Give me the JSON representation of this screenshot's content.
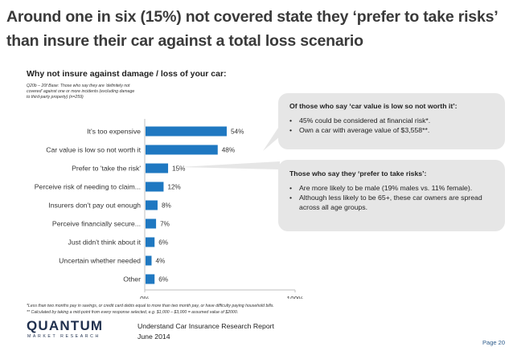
{
  "slide": {
    "title": "Around one in six (15%) not covered state they ‘prefer to take risks’ than insure their car against a total loss scenario",
    "subtitle": "Why not insure against damage / loss of your car:",
    "base_note": "Q20b – 20f Base: Those who say they are 'definitely not covered' against one or more incidents (excluding damage to third-party property) (n=259)"
  },
  "chart_data": {
    "type": "bar",
    "orientation": "horizontal",
    "categories": [
      "It's too expensive",
      "Car value is low so not worth it",
      "Prefer to 'take the risk'",
      "Perceive risk of needing to claim...",
      "Insurers don't pay out enough",
      "Perceive financially secure...",
      "Just didn't think about it",
      "Uncertain whether needed",
      "Other"
    ],
    "values": [
      54,
      48,
      15,
      12,
      8,
      7,
      6,
      4,
      6
    ],
    "value_labels": [
      "54%",
      "48%",
      "15%",
      "12%",
      "8%",
      "7%",
      "6%",
      "4%",
      "6%"
    ],
    "xlim": [
      0,
      100
    ],
    "x_tick_labels": [
      "0%",
      "100%"
    ],
    "grid": false,
    "bar_color": "#1f78c1"
  },
  "callouts": {
    "low_value": {
      "heading": "Of those who say ‘car value is low so not worth it’:",
      "bullets": [
        "45% could be considered at financial risk*.",
        "Own a car with average value of $3,558**."
      ]
    },
    "take_risks": {
      "heading": "Those who say they ‘prefer to take risks’:",
      "bullets": [
        "Are more likely to be male (19% males vs. 11% female).",
        "Although less likely to be 65+, these car owners are spread across all age groups."
      ]
    }
  },
  "footnotes": [
    "*Less than two months pay in savings, or credit card debts equal to more than two month pay, or have difficulty paying household bills.",
    "** Calculated by taking a mid-point from every response selected, e.g. $1,000 – $3,000 = assumed value of $2000."
  ],
  "footer": {
    "logo_main": "QUANTUM",
    "logo_sub": "MARKET RESEARCH",
    "report_title": "Understand Car Insurance Research Report",
    "report_date": "June 2014",
    "page": "Page 20"
  }
}
